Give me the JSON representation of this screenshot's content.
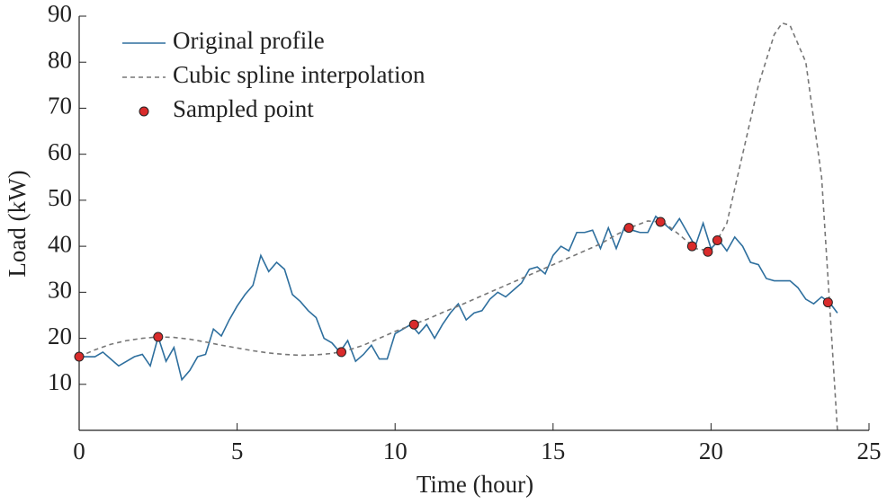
{
  "chart_data": {
    "type": "line",
    "xlabel": "Time (hour)",
    "ylabel": "Load (kW)",
    "xlim": [
      0,
      25
    ],
    "xticks": [
      0,
      5,
      10,
      15,
      20,
      25
    ],
    "ylim": [
      0,
      90
    ],
    "yticks": [
      10,
      20,
      30,
      40,
      50,
      60,
      70,
      80,
      90
    ],
    "legend": "upper-left",
    "series": [
      {
        "name": "Original profile",
        "color": "#2e6f9e",
        "linestyle": "solid",
        "x": [
          0,
          0.25,
          0.5,
          0.75,
          1,
          1.25,
          1.5,
          1.75,
          2,
          2.25,
          2.5,
          2.75,
          3,
          3.25,
          3.5,
          3.75,
          4,
          4.25,
          4.5,
          4.75,
          5,
          5.25,
          5.5,
          5.75,
          6,
          6.25,
          6.5,
          6.75,
          7,
          7.25,
          7.5,
          7.75,
          8,
          8.25,
          8.5,
          8.75,
          9,
          9.25,
          9.5,
          9.75,
          10,
          10.25,
          10.5,
          10.75,
          11,
          11.25,
          11.5,
          11.75,
          12,
          12.25,
          12.5,
          12.75,
          13,
          13.25,
          13.5,
          13.75,
          14,
          14.25,
          14.5,
          14.75,
          15,
          15.25,
          15.5,
          15.75,
          16,
          16.25,
          16.5,
          16.75,
          17,
          17.25,
          17.5,
          17.75,
          18,
          18.25,
          18.5,
          18.75,
          19,
          19.25,
          19.5,
          19.75,
          20,
          20.25,
          20.5,
          20.75,
          21,
          21.25,
          21.5,
          21.75,
          22,
          22.25,
          22.5,
          22.75,
          23,
          23.25,
          23.5,
          23.75,
          24
        ],
        "values": [
          16,
          16,
          16,
          17,
          15.5,
          14,
          15,
          16,
          16.5,
          14,
          20.3,
          15,
          18,
          11,
          13,
          16,
          16.5,
          22,
          20.5,
          24,
          27,
          29.5,
          31.5,
          38,
          34.5,
          36.5,
          35,
          29.5,
          28,
          26,
          24.5,
          20,
          19,
          17,
          19.5,
          15,
          16.5,
          18.5,
          15.5,
          15.5,
          21,
          22,
          23,
          21,
          23,
          20,
          23,
          25.5,
          27.5,
          24,
          25.5,
          26,
          28.5,
          30,
          29,
          30.5,
          32,
          35,
          35.5,
          34,
          38,
          40,
          39,
          43,
          43,
          43.5,
          39.5,
          44,
          39.5,
          44,
          43.5,
          43,
          43,
          46.5,
          45,
          43.5,
          46,
          43,
          40,
          45,
          39.5,
          41.3,
          39,
          42,
          40,
          36.5,
          36,
          33,
          32.5,
          32.5,
          32.5,
          31,
          28.5,
          27.5,
          29,
          27.8,
          25.5
        ]
      },
      {
        "name": "Cubic spline interpolation",
        "color": "#777777",
        "linestyle": "dashed",
        "x": [
          0,
          0.5,
          1,
          1.5,
          2,
          2.5,
          3,
          3.5,
          4,
          4.5,
          5,
          5.5,
          6,
          6.5,
          7,
          7.5,
          8,
          8.5,
          9,
          9.5,
          10,
          10.5,
          11,
          11.5,
          12,
          12.5,
          13,
          13.5,
          14,
          14.5,
          15,
          15.5,
          16,
          16.5,
          17,
          17.5,
          18,
          18.5,
          19,
          19.5,
          20,
          20.5,
          21,
          21.5,
          22,
          22.25,
          22.5,
          23,
          23.5,
          23.75,
          24
        ],
        "values": [
          16,
          17.5,
          18.7,
          19.5,
          20,
          20.3,
          20.2,
          19.8,
          19.2,
          18.5,
          17.9,
          17.3,
          16.8,
          16.5,
          16.3,
          16.4,
          16.7,
          17.4,
          18.5,
          20,
          21.5,
          22.8,
          24.1,
          25.6,
          27,
          28.5,
          30,
          31.5,
          33,
          34.5,
          36,
          37.5,
          39,
          40.5,
          42.5,
          44.2,
          45.5,
          45.2,
          42.5,
          39.5,
          39,
          45,
          60,
          75,
          86,
          88.5,
          88,
          80,
          55,
          27.8,
          0
        ]
      },
      {
        "name": "Sampled point",
        "color": "#d92b2b",
        "linestyle": "none",
        "marker": "o",
        "x": [
          0,
          2.5,
          8.3,
          10.6,
          17.4,
          18.4,
          19.4,
          19.9,
          20.2,
          23.7
        ],
        "values": [
          16,
          20.3,
          17,
          23,
          44,
          45.3,
          40,
          38.8,
          41.3,
          27.8
        ]
      }
    ]
  }
}
